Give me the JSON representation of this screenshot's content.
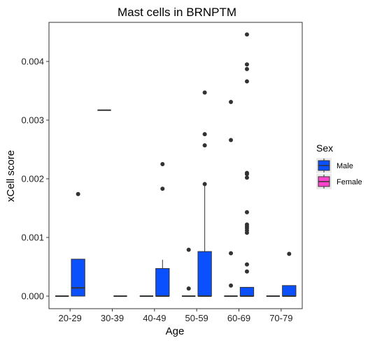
{
  "chart_data": {
    "type": "box",
    "title": "Mast cells in BRNPTM",
    "xlabel": "Age",
    "ylabel": "xCell score",
    "ylim": [
      -0.00025,
      0.00465
    ],
    "yticks": [
      0.0,
      0.001,
      0.002,
      0.003,
      0.004
    ],
    "ytick_labels": [
      "0.000",
      "0.001",
      "0.002",
      "0.003",
      "0.004"
    ],
    "categories": [
      "20-29",
      "30-39",
      "40-49",
      "50-59",
      "60-69",
      "70-79"
    ],
    "grid": false,
    "legend": {
      "title": "Sex",
      "position": "right",
      "entries": [
        {
          "name": "Male",
          "color": "#0a50ff"
        },
        {
          "name": "Female",
          "color": "#ff44cc"
        }
      ]
    },
    "series": [
      {
        "name": "Female",
        "color": "#ff44cc",
        "boxes": [
          {
            "category": "20-29",
            "min": 0.0,
            "q1": 0.0,
            "median": 0.0,
            "q3": 0.0,
            "max": 0.0,
            "outliers": []
          },
          {
            "category": "30-39",
            "min": 0.00317,
            "q1": 0.00317,
            "median": 0.00317,
            "q3": 0.00317,
            "max": 0.00317,
            "outliers": []
          },
          {
            "category": "40-49",
            "min": 0.0,
            "q1": 0.0,
            "median": 0.0,
            "q3": 0.0,
            "max": 0.0,
            "outliers": []
          },
          {
            "category": "50-59",
            "min": 0.0,
            "q1": 0.0,
            "median": 0.0,
            "q3": 0.0,
            "max": 0.0,
            "outliers": [
              0.00013,
              0.00079
            ]
          },
          {
            "category": "60-69",
            "min": 0.0,
            "q1": 0.0,
            "median": 0.0,
            "q3": 0.0,
            "max": 0.0,
            "outliers": [
              0.00018,
              0.00073,
              0.00266,
              0.00331
            ]
          },
          {
            "category": "70-79",
            "min": 0.0,
            "q1": 0.0,
            "median": 0.0,
            "q3": 0.0,
            "max": 0.0,
            "outliers": []
          }
        ]
      },
      {
        "name": "Male",
        "color": "#0a50ff",
        "boxes": [
          {
            "category": "20-29",
            "min": 0.0,
            "q1": 0.0,
            "median": 0.00014,
            "q3": 0.00063,
            "max": 0.00063,
            "outliers": [
              0.00174
            ]
          },
          {
            "category": "30-39",
            "min": 0.0,
            "q1": 0.0,
            "median": 0.0,
            "q3": 0.0,
            "max": 0.0,
            "outliers": []
          },
          {
            "category": "40-49",
            "min": 0.0,
            "q1": 0.0,
            "median": 0.0,
            "q3": 0.00047,
            "max": 0.00062,
            "outliers": [
              0.00183,
              0.00225
            ]
          },
          {
            "category": "50-59",
            "min": 0.0,
            "q1": 0.0,
            "median": 0.0,
            "q3": 0.00076,
            "max": 0.00189,
            "outliers": [
              0.00191,
              0.00257,
              0.00276,
              0.00347
            ]
          },
          {
            "category": "60-69",
            "min": 0.0,
            "q1": 0.0,
            "median": 0.0,
            "q3": 0.00015,
            "max": 0.00015,
            "outliers": [
              0.00042,
              0.00054,
              0.00108,
              0.00112,
              0.00116,
              0.00119,
              0.00122,
              0.00143,
              0.00202,
              0.00208,
              0.0021,
              0.00366,
              0.00387,
              0.00395,
              0.00446
            ]
          },
          {
            "category": "70-79",
            "min": 0.0,
            "q1": 0.0,
            "median": 0.0,
            "q3": 0.00018,
            "max": 0.00018,
            "outliers": [
              0.00072
            ]
          }
        ]
      }
    ]
  }
}
